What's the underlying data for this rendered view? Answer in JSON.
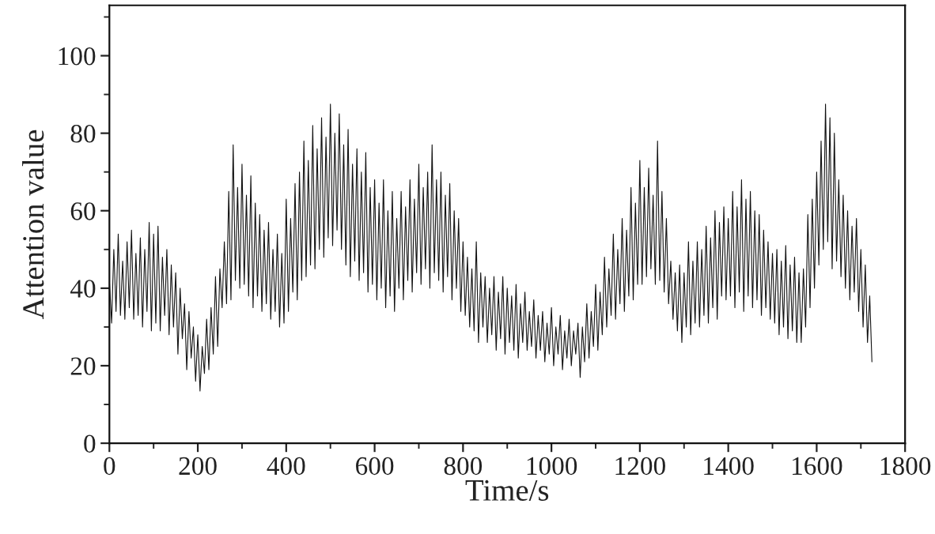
{
  "chart_data": {
    "type": "line",
    "xlabel": "Time/s",
    "ylabel": "Attention value",
    "xlim": [
      0,
      1800
    ],
    "ylim": [
      0,
      113
    ],
    "xticks": [
      0,
      {
        "value": 100,
        "label": null
      },
      200,
      {
        "value": 300,
        "label": null
      },
      400,
      {
        "value": 500,
        "label": null
      },
      600,
      {
        "value": 700,
        "label": null
      },
      800,
      {
        "value": 900,
        "label": null
      },
      1000,
      {
        "value": 1100,
        "label": null
      },
      1200,
      {
        "value": 1300,
        "label": null
      },
      1400,
      {
        "value": 1500,
        "label": null
      },
      1600,
      {
        "value": 1700,
        "label": null
      },
      1800
    ],
    "yticks": [
      0,
      {
        "value": 10,
        "label": null
      },
      20,
      {
        "value": 30,
        "label": null
      },
      40,
      {
        "value": 50,
        "label": null
      },
      60,
      {
        "value": 70,
        "label": null
      },
      80,
      {
        "value": 90,
        "label": null
      },
      100,
      {
        "value": 110,
        "label": null
      }
    ],
    "x": [
      0,
      5,
      10,
      15,
      20,
      25,
      30,
      35,
      40,
      45,
      50,
      55,
      60,
      65,
      70,
      75,
      80,
      85,
      90,
      95,
      100,
      105,
      110,
      115,
      120,
      125,
      130,
      135,
      140,
      145,
      150,
      155,
      160,
      165,
      170,
      175,
      180,
      185,
      190,
      195,
      200,
      205,
      210,
      215,
      220,
      225,
      230,
      235,
      240,
      245,
      250,
      255,
      260,
      265,
      270,
      275,
      280,
      285,
      290,
      295,
      300,
      305,
      310,
      315,
      320,
      325,
      330,
      335,
      340,
      345,
      350,
      355,
      360,
      365,
      370,
      375,
      380,
      385,
      390,
      395,
      400,
      405,
      410,
      415,
      420,
      425,
      430,
      435,
      440,
      445,
      450,
      455,
      460,
      465,
      470,
      475,
      480,
      485,
      490,
      495,
      500,
      505,
      510,
      515,
      520,
      525,
      530,
      535,
      540,
      545,
      550,
      555,
      560,
      565,
      570,
      575,
      580,
      585,
      590,
      595,
      600,
      605,
      610,
      615,
      620,
      625,
      630,
      635,
      640,
      645,
      650,
      655,
      660,
      665,
      670,
      675,
      680,
      685,
      690,
      695,
      700,
      705,
      710,
      715,
      720,
      725,
      730,
      735,
      740,
      745,
      750,
      755,
      760,
      765,
      770,
      775,
      780,
      785,
      790,
      795,
      800,
      805,
      810,
      815,
      820,
      825,
      830,
      835,
      840,
      845,
      850,
      855,
      860,
      865,
      870,
      875,
      880,
      885,
      890,
      895,
      900,
      905,
      910,
      915,
      920,
      925,
      930,
      935,
      940,
      945,
      950,
      955,
      960,
      965,
      970,
      975,
      980,
      985,
      990,
      995,
      1000,
      1005,
      1010,
      1015,
      1020,
      1025,
      1030,
      1035,
      1040,
      1045,
      1050,
      1055,
      1060,
      1065,
      1070,
      1075,
      1080,
      1085,
      1090,
      1095,
      1100,
      1105,
      1110,
      1115,
      1120,
      1125,
      1130,
      1135,
      1140,
      1145,
      1150,
      1155,
      1160,
      1165,
      1170,
      1175,
      1180,
      1185,
      1190,
      1195,
      1200,
      1205,
      1210,
      1215,
      1220,
      1225,
      1230,
      1235,
      1240,
      1245,
      1250,
      1255,
      1260,
      1265,
      1270,
      1275,
      1280,
      1285,
      1290,
      1295,
      1300,
      1305,
      1310,
      1315,
      1320,
      1325,
      1330,
      1335,
      1340,
      1345,
      1350,
      1355,
      1360,
      1365,
      1370,
      1375,
      1380,
      1385,
      1390,
      1395,
      1400,
      1405,
      1410,
      1415,
      1420,
      1425,
      1430,
      1435,
      1440,
      1445,
      1450,
      1455,
      1460,
      1465,
      1470,
      1475,
      1480,
      1485,
      1490,
      1495,
      1500,
      1505,
      1510,
      1515,
      1520,
      1525,
      1530,
      1535,
      1540,
      1545,
      1550,
      1555,
      1560,
      1565,
      1570,
      1575,
      1580,
      1585,
      1590,
      1595,
      1600,
      1605,
      1610,
      1615,
      1620,
      1625,
      1630,
      1635,
      1640,
      1645,
      1650,
      1655,
      1660,
      1665,
      1670,
      1675,
      1680,
      1685,
      1690,
      1695,
      1700,
      1705,
      1710,
      1715,
      1720,
      1725
    ],
    "series": [
      {
        "color": "#111111",
        "values": [
          42,
          31,
          50,
          34,
          54,
          33,
          47,
          32,
          52,
          35,
          55,
          32,
          49,
          33,
          53,
          30,
          50,
          34,
          57,
          29,
          54,
          31,
          56,
          29,
          48,
          33,
          50,
          28,
          46,
          30,
          44,
          23,
          40,
          27,
          36,
          19,
          34,
          22,
          30,
          16,
          28,
          13.5,
          25,
          18,
          32,
          19,
          35,
          23,
          43,
          25,
          45,
          35,
          52,
          36,
          65,
          37,
          77,
          42,
          66,
          40,
          72,
          41,
          64,
          38,
          69,
          35,
          62,
          38,
          59,
          34,
          55,
          36,
          57,
          32,
          50,
          34,
          54,
          30,
          49,
          31,
          63,
          34,
          58,
          39,
          67,
          37,
          70,
          42,
          78,
          43,
          73,
          46,
          82,
          45,
          76,
          50,
          84,
          48,
          79,
          53,
          87.5,
          51,
          80,
          55,
          85,
          50,
          77,
          46,
          81,
          43,
          72,
          47,
          76,
          42,
          70,
          44,
          75,
          39,
          66,
          41,
          68,
          37,
          62,
          40,
          68,
          35,
          60,
          38,
          65,
          34,
          58,
          40,
          65,
          37,
          61,
          42,
          68,
          39,
          63,
          44,
          72,
          41,
          66,
          45,
          70,
          40,
          77,
          44,
          68,
          42,
          70,
          39,
          64,
          43,
          67,
          37,
          60,
          40,
          58,
          34,
          52,
          33,
          48,
          30,
          45,
          29,
          52,
          26,
          44,
          30,
          43,
          26,
          40,
          28,
          43,
          24,
          39,
          27,
          43,
          23,
          40,
          26,
          38,
          24,
          41,
          22,
          36,
          26,
          39,
          24,
          34,
          25,
          37,
          22,
          33,
          24,
          34,
          21,
          31,
          23,
          35,
          20,
          30,
          23,
          33,
          19,
          29,
          22,
          32,
          20,
          29,
          23,
          31,
          17,
          30,
          21,
          36,
          22,
          34,
          25,
          41,
          24,
          39,
          28,
          48,
          30,
          45,
          33,
          54,
          32,
          50,
          36,
          58,
          34,
          55,
          38,
          66,
          37,
          62,
          41,
          73,
          41,
          66,
          43,
          71,
          45,
          64,
          41,
          78,
          42,
          65,
          39,
          58,
          36,
          47,
          32,
          44,
          29,
          46,
          26,
          44,
          30,
          52,
          28,
          47,
          31,
          52,
          30,
          50,
          33,
          56,
          31,
          53,
          35,
          60,
          32,
          57,
          38,
          61,
          37,
          58,
          38,
          65,
          35,
          61,
          39,
          68,
          34,
          63,
          38,
          65,
          35,
          60,
          37,
          59,
          33,
          55,
          35,
          52,
          32,
          49,
          31,
          50,
          28,
          47,
          30,
          51,
          27,
          46,
          29,
          48,
          26,
          44,
          26,
          45,
          30,
          59,
          35,
          63,
          40,
          70,
          46,
          78,
          50,
          87.5,
          52,
          84,
          45,
          80,
          47,
          68,
          43,
          64,
          40,
          60,
          37,
          56,
          39,
          58,
          34,
          50,
          30,
          46,
          26,
          38,
          21
        ]
      }
    ]
  }
}
